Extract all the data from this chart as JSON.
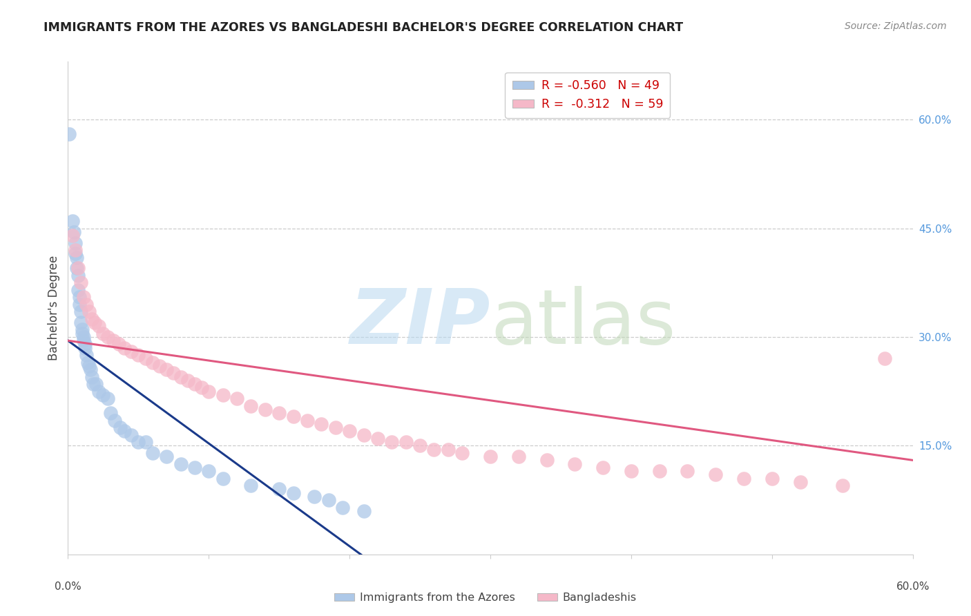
{
  "title": "IMMIGRANTS FROM THE AZORES VS BANGLADESHI BACHELOR'S DEGREE CORRELATION CHART",
  "source": "Source: ZipAtlas.com",
  "ylabel": "Bachelor's Degree",
  "right_yticks": [
    "60.0%",
    "45.0%",
    "30.0%",
    "15.0%"
  ],
  "right_ytick_vals": [
    0.6,
    0.45,
    0.3,
    0.15
  ],
  "legend1_label": "R = -0.560   N = 49",
  "legend2_label": "R =  -0.312   N = 59",
  "legend1_color": "#adc8e8",
  "legend2_color": "#f5b8c8",
  "line1_color": "#1a3a8a",
  "line2_color": "#e05880",
  "azores_x": [
    0.001,
    0.003,
    0.004,
    0.005,
    0.005,
    0.006,
    0.006,
    0.007,
    0.007,
    0.008,
    0.008,
    0.009,
    0.009,
    0.01,
    0.01,
    0.011,
    0.011,
    0.012,
    0.012,
    0.013,
    0.014,
    0.015,
    0.016,
    0.017,
    0.018,
    0.02,
    0.022,
    0.025,
    0.028,
    0.03,
    0.033,
    0.037,
    0.04,
    0.045,
    0.05,
    0.055,
    0.06,
    0.07,
    0.08,
    0.09,
    0.1,
    0.11,
    0.13,
    0.15,
    0.16,
    0.175,
    0.185,
    0.195,
    0.21
  ],
  "azores_y": [
    0.58,
    0.46,
    0.445,
    0.43,
    0.415,
    0.41,
    0.395,
    0.385,
    0.365,
    0.355,
    0.345,
    0.335,
    0.32,
    0.31,
    0.305,
    0.3,
    0.295,
    0.29,
    0.285,
    0.275,
    0.265,
    0.26,
    0.255,
    0.245,
    0.235,
    0.235,
    0.225,
    0.22,
    0.215,
    0.195,
    0.185,
    0.175,
    0.17,
    0.165,
    0.155,
    0.155,
    0.14,
    0.135,
    0.125,
    0.12,
    0.115,
    0.105,
    0.095,
    0.09,
    0.085,
    0.08,
    0.075,
    0.065,
    0.06
  ],
  "bangladeshi_x": [
    0.003,
    0.005,
    0.007,
    0.009,
    0.011,
    0.013,
    0.015,
    0.017,
    0.019,
    0.022,
    0.025,
    0.028,
    0.032,
    0.036,
    0.04,
    0.045,
    0.05,
    0.055,
    0.06,
    0.065,
    0.07,
    0.075,
    0.08,
    0.085,
    0.09,
    0.095,
    0.1,
    0.11,
    0.12,
    0.13,
    0.14,
    0.15,
    0.16,
    0.17,
    0.18,
    0.19,
    0.2,
    0.21,
    0.22,
    0.23,
    0.24,
    0.25,
    0.26,
    0.27,
    0.28,
    0.3,
    0.32,
    0.34,
    0.36,
    0.38,
    0.4,
    0.42,
    0.44,
    0.46,
    0.48,
    0.5,
    0.52,
    0.55,
    0.58
  ],
  "bangladeshi_y": [
    0.44,
    0.42,
    0.395,
    0.375,
    0.355,
    0.345,
    0.335,
    0.325,
    0.32,
    0.315,
    0.305,
    0.3,
    0.295,
    0.29,
    0.285,
    0.28,
    0.275,
    0.27,
    0.265,
    0.26,
    0.255,
    0.25,
    0.245,
    0.24,
    0.235,
    0.23,
    0.225,
    0.22,
    0.215,
    0.205,
    0.2,
    0.195,
    0.19,
    0.185,
    0.18,
    0.175,
    0.17,
    0.165,
    0.16,
    0.155,
    0.155,
    0.15,
    0.145,
    0.145,
    0.14,
    0.135,
    0.135,
    0.13,
    0.125,
    0.12,
    0.115,
    0.115,
    0.115,
    0.11,
    0.105,
    0.105,
    0.1,
    0.095,
    0.27
  ],
  "xlim": [
    0.0,
    0.6
  ],
  "ylim": [
    0.0,
    0.68
  ],
  "azores_line_x": [
    0.0,
    0.215
  ],
  "azores_line_y": [
    0.295,
    -0.01
  ],
  "bangladeshi_line_x": [
    0.0,
    0.6
  ],
  "bangladeshi_line_y": [
    0.295,
    0.13
  ],
  "background_color": "#ffffff",
  "grid_color": "#cccccc",
  "spine_color": "#cccccc"
}
